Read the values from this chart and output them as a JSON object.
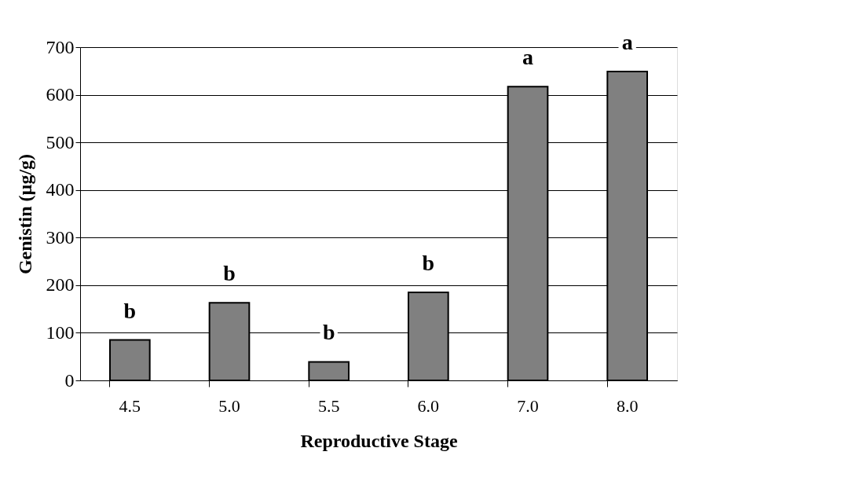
{
  "chart_data": {
    "type": "bar",
    "xlabel": "Reproductive Stage",
    "ylabel": "Genistin (µg/g)",
    "categories": [
      "4.5",
      "5.0",
      "5.5",
      "6.0",
      "7.0",
      "8.0"
    ],
    "values": [
      85,
      163,
      39,
      185,
      617,
      649
    ],
    "color": "#808080",
    "ylim": [
      0,
      700
    ],
    "yticks": [
      0,
      100,
      200,
      300,
      400,
      500,
      600,
      700
    ],
    "grid": "y",
    "annotations": [
      "b",
      "b",
      "b",
      "b",
      "a",
      "a"
    ]
  }
}
